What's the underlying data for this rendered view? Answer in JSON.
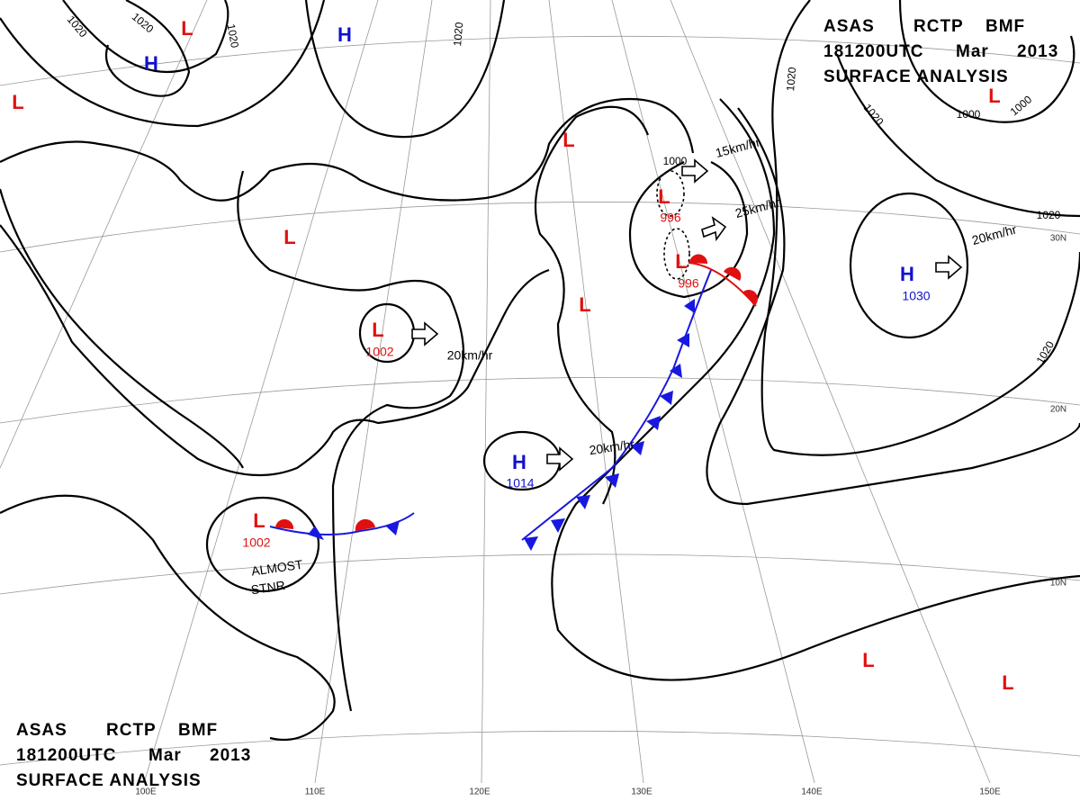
{
  "header": {
    "line1": [
      "ASAS",
      "RCTP",
      "BMF"
    ],
    "line2": [
      "181200UTC",
      "Mar",
      "2013"
    ],
    "line3": "SURFACE ANALYSIS"
  },
  "centers": [
    {
      "symbol": "L",
      "pressure": 1002
    },
    {
      "symbol": "H",
      "pressure": 1014
    },
    {
      "symbol": "L",
      "pressure": 1002
    },
    {
      "symbol": "H",
      "pressure": 1030
    },
    {
      "symbol": "L",
      "pressure": 996
    },
    {
      "symbol": "L",
      "pressure": 996
    },
    {
      "symbol": "H"
    },
    {
      "symbol": "H"
    },
    {
      "symbol": "L"
    },
    {
      "symbol": "L"
    },
    {
      "symbol": "L"
    },
    {
      "symbol": "L"
    },
    {
      "symbol": "L"
    },
    {
      "symbol": "L"
    },
    {
      "symbol": "L"
    },
    {
      "symbol": "L"
    }
  ],
  "isobar_labels": [
    1020,
    1020,
    1020,
    1020,
    1020,
    1020,
    1020,
    1020,
    1000,
    1000,
    1000
  ],
  "motions": [
    "15km/hr",
    "25km/hr",
    "20km/hr",
    "20km/hr",
    "20km/hr"
  ],
  "latitudes": [
    "30N",
    "20N",
    "10N"
  ],
  "longitudes": [
    "100E",
    "110E",
    "120E",
    "130E",
    "140E",
    "150E"
  ],
  "note": [
    "ALMOST",
    "STNR"
  ]
}
